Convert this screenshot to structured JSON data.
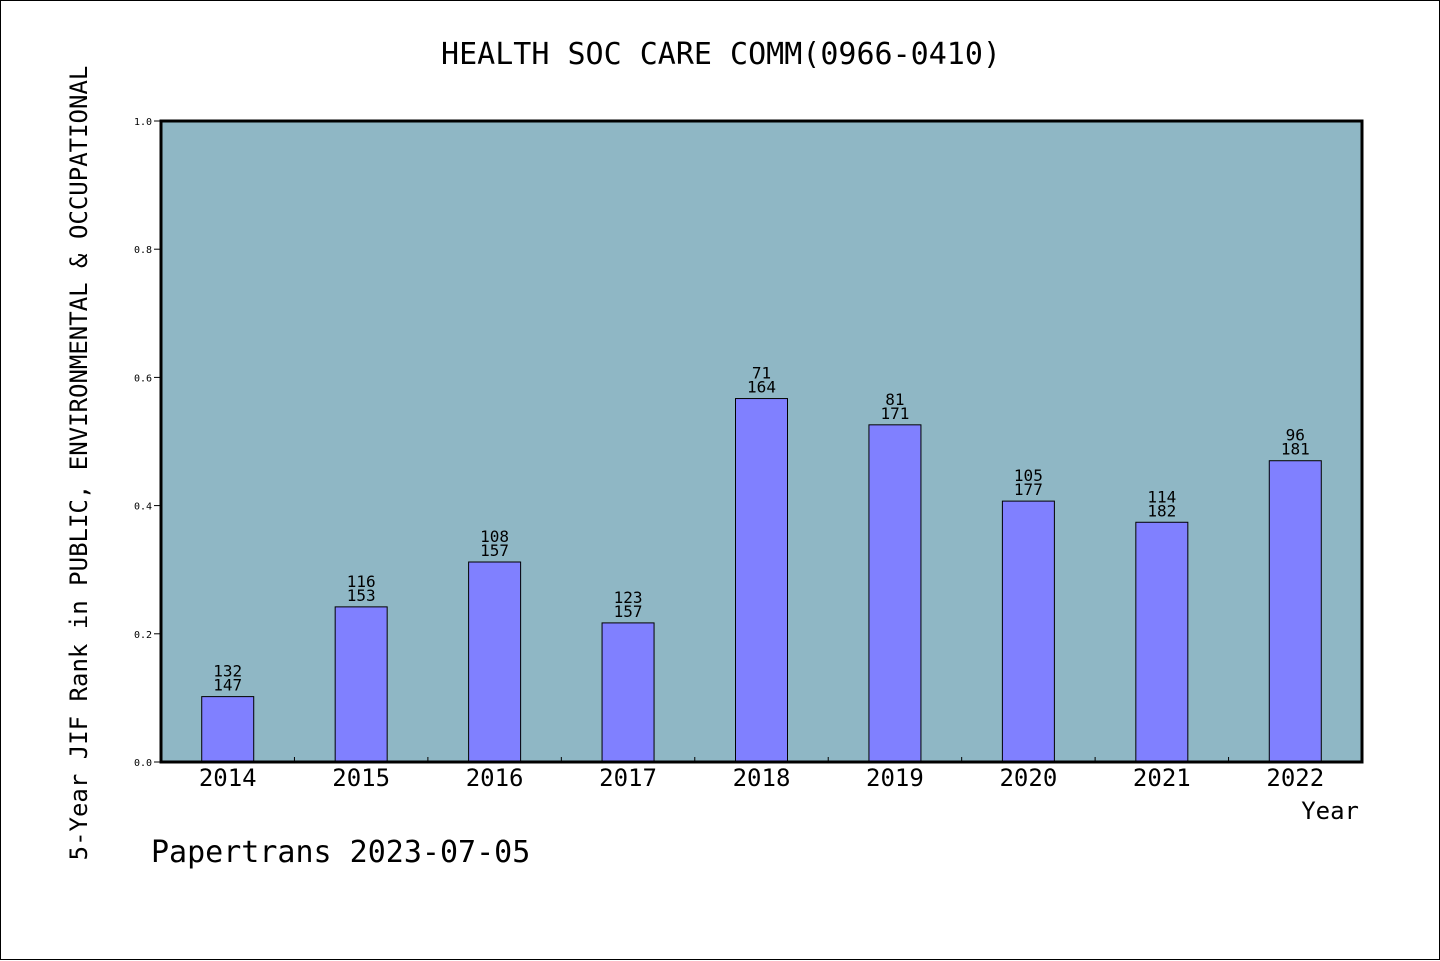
{
  "chart_data": {
    "type": "bar",
    "title": "HEALTH SOC CARE COMM(0966-0410)",
    "xlabel": "Year",
    "ylabel": "5-Year JIF Rank in PUBLIC, ENVIRONMENTAL & OCCUPATIONAL",
    "categories": [
      "2014",
      "2015",
      "2016",
      "2017",
      "2018",
      "2019",
      "2020",
      "2021",
      "2022"
    ],
    "values": [
      0.102,
      0.242,
      0.312,
      0.217,
      0.567,
      0.526,
      0.407,
      0.374,
      0.47
    ],
    "rank": [
      "132",
      "116",
      "108",
      "123",
      "71",
      "81",
      "105",
      "114",
      "96"
    ],
    "total": [
      "147",
      "153",
      "157",
      "157",
      "164",
      "171",
      "177",
      "182",
      "181"
    ],
    "ylim": [
      0,
      1.0
    ],
    "yticks": [
      "0.0",
      "0.2",
      "0.4",
      "0.6",
      "0.8",
      "1.0"
    ],
    "grid": false,
    "colors": {
      "plot_bg": "#8fb7c5",
      "bar": "#8080ff",
      "bar_edge": "#000000"
    }
  },
  "footer": "Papertrans 2023-07-05"
}
